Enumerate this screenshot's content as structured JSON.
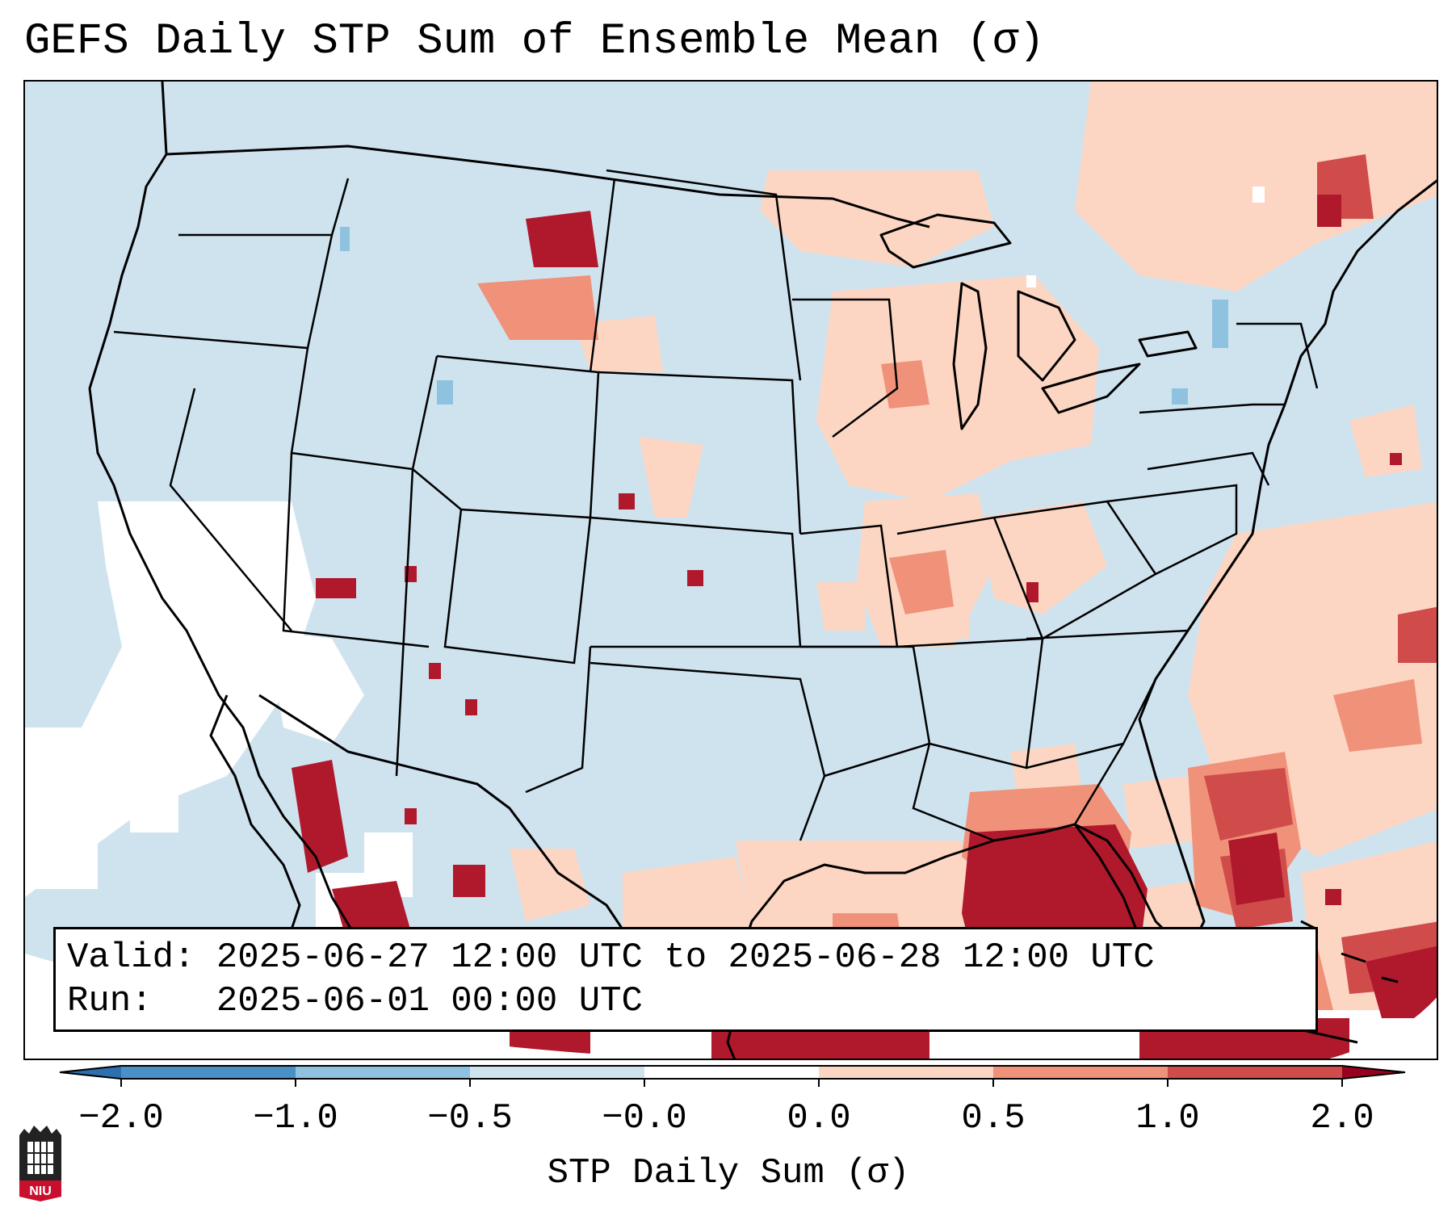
{
  "title": "GEFS Daily STP Sum of Ensemble Mean (σ)",
  "info": {
    "valid_line": "Valid: 2025-06-27 12:00 UTC to 2025-06-28 12:00 UTC",
    "run_line": "Run:   2025-06-01 00:00 UTC"
  },
  "colorbar": {
    "label": "STP Daily Sum (σ)",
    "ticks": [
      "−2.0",
      "−1.0",
      "−0.5",
      "−0.0",
      "0.0",
      "0.5",
      "1.0",
      "2.0"
    ],
    "colors": [
      "#4a90c6",
      "#8fc2de",
      "#cfe3ef",
      "#ffffff",
      "#fcd6c3",
      "#f0917a",
      "#cf4c4a",
      "#b0182c"
    ],
    "extend": "both"
  },
  "map_colors": {
    "ocean_ice_base": "#cfe3ef",
    "neutral": "#ffffff",
    "light_positive": "#fcd6c3",
    "mid_positive": "#f0917a",
    "high_positive": "#cf4c4a",
    "max_positive": "#b0182c",
    "light_negative": "#8fc2de"
  },
  "logo": {
    "text": "NIU",
    "icon": "niu-seal-icon"
  }
}
